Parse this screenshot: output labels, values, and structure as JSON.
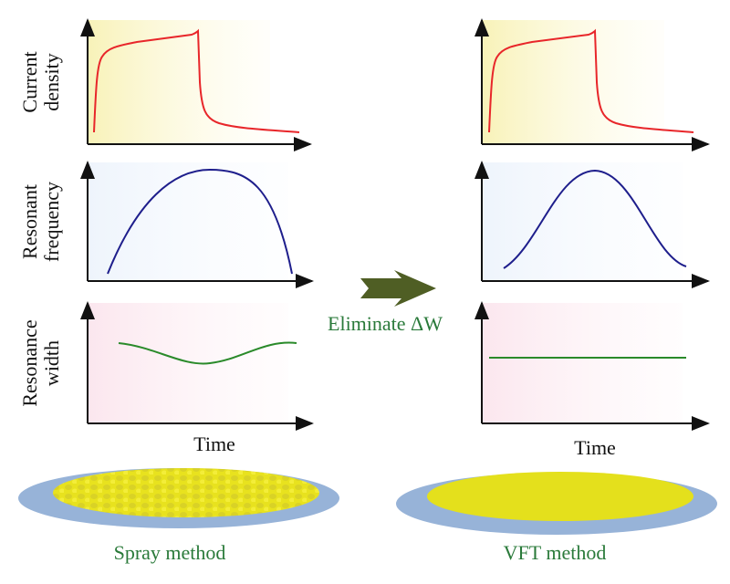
{
  "left_column": {
    "ylabels": [
      [
        "Current",
        "density"
      ],
      [
        "Resonant",
        "frequency"
      ],
      [
        "Resonance",
        "width"
      ]
    ],
    "xlabel": "Time",
    "caption": "Spray method"
  },
  "right_column": {
    "xlabel": "Time",
    "caption": "VFT method"
  },
  "transition": {
    "label": "Eliminate ΔW",
    "icon": "arrow-right-icon"
  },
  "colors": {
    "current_density": "#e8262a",
    "resonant_frequency": "#1e1e8c",
    "resonance_width": "#2a8a2a",
    "caption_text": "#2a7a3a",
    "arrow": "#4f5e24",
    "substrate": "#97b3d8",
    "film": "#e4e01c"
  }
}
